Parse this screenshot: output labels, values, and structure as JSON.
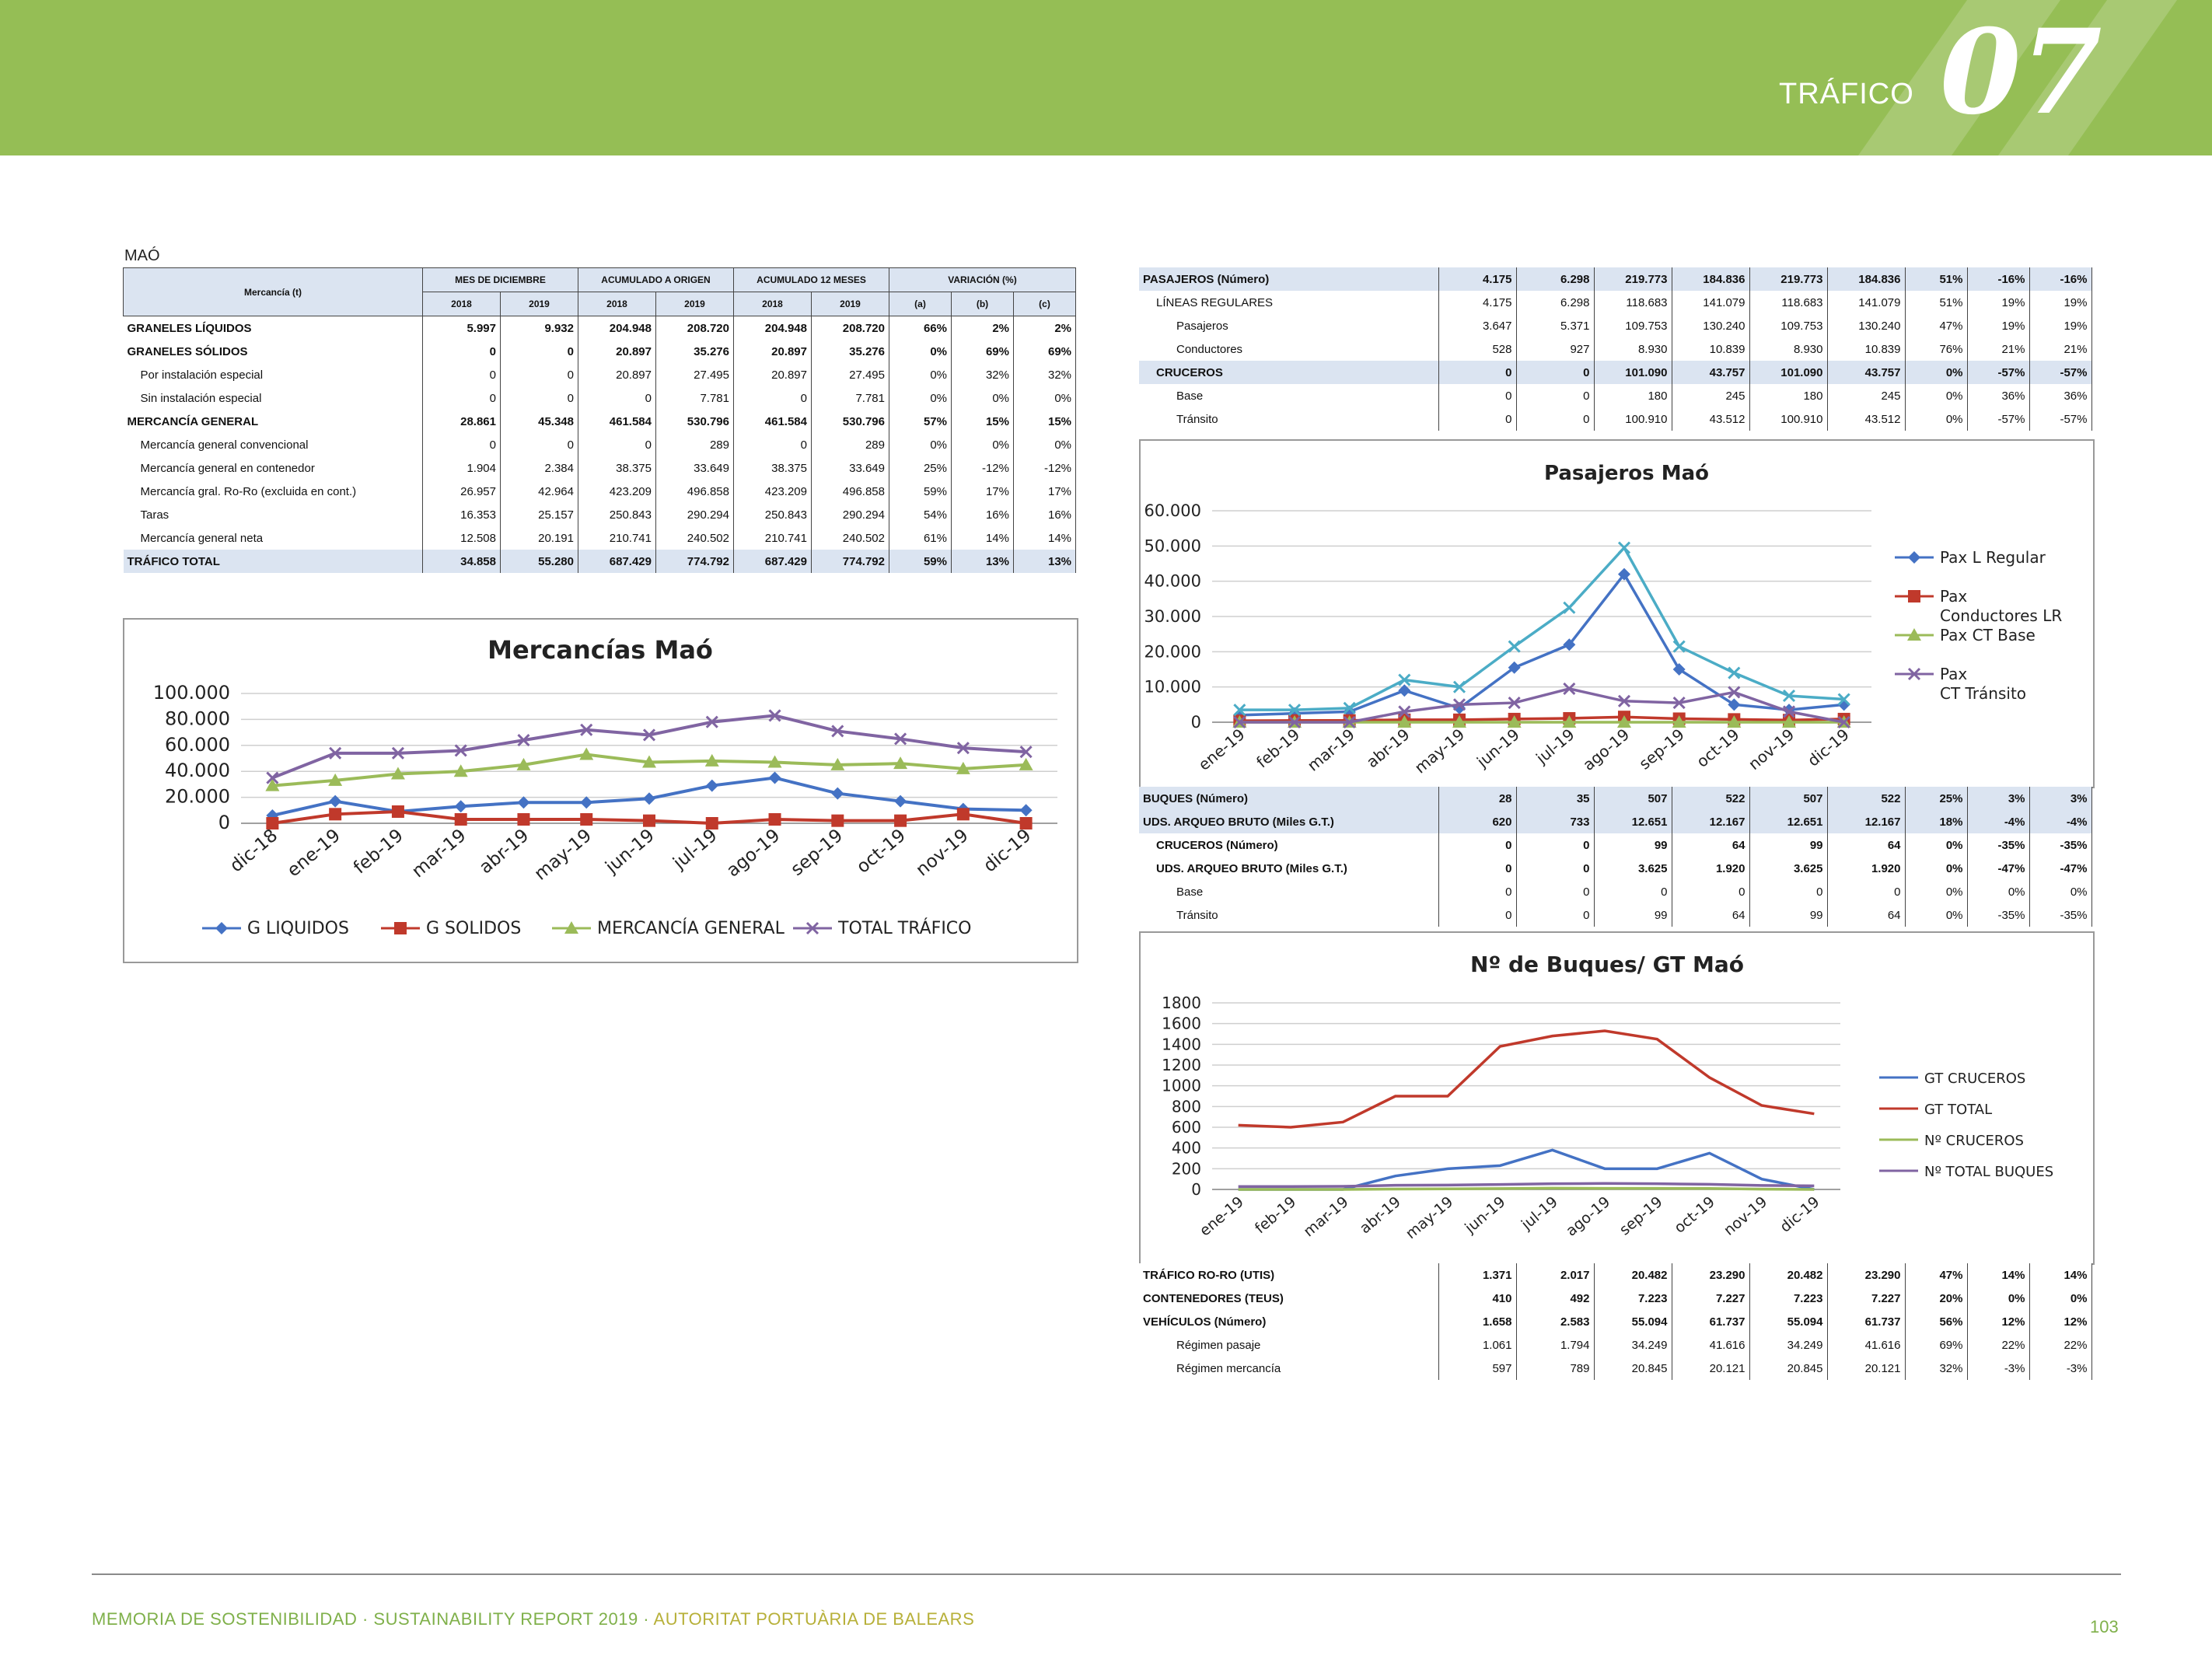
{
  "header": {
    "title": "TRÁFICO",
    "chapter": "07",
    "color": "#95be55"
  },
  "footer": {
    "text_main": "MEMORIA DE SOSTENIBILIDAD · SUSTAINABILITY REPORT 2019 · ",
    "text_accent": "AUTORITAT PORTUÀRIA DE BALEARS",
    "page": "103"
  },
  "left_table": {
    "caption": "MAÓ",
    "col_header": "Mercancía (t)",
    "groups": [
      "MES DE DICIEMBRE",
      "ACUMULADO A ORIGEN",
      "ACUMULADO 12 MESES",
      "VARIACIÓN (%)"
    ],
    "subheaders": [
      "2018",
      "2019",
      "2018",
      "2019",
      "2018",
      "2019",
      "(a)",
      "(b)",
      "(c)"
    ],
    "rows": [
      {
        "label": "GRANELES LÍQUIDOS",
        "level": 0,
        "bold": true,
        "values": [
          "5.997",
          "9.932",
          "204.948",
          "208.720",
          "204.948",
          "208.720",
          "66%",
          "2%",
          "2%"
        ]
      },
      {
        "label": "GRANELES SÓLIDOS",
        "level": 0,
        "bold": true,
        "values": [
          "0",
          "0",
          "20.897",
          "35.276",
          "20.897",
          "35.276",
          "0%",
          "69%",
          "69%"
        ]
      },
      {
        "label": "Por instalación especial",
        "level": 1,
        "bold": false,
        "values": [
          "0",
          "0",
          "20.897",
          "27.495",
          "20.897",
          "27.495",
          "0%",
          "32%",
          "32%"
        ]
      },
      {
        "label": "Sin instalación especial",
        "level": 1,
        "bold": false,
        "values": [
          "0",
          "0",
          "0",
          "7.781",
          "0",
          "7.781",
          "0%",
          "0%",
          "0%"
        ]
      },
      {
        "label": "MERCANCÍA GENERAL",
        "level": 0,
        "bold": true,
        "values": [
          "28.861",
          "45.348",
          "461.584",
          "530.796",
          "461.584",
          "530.796",
          "57%",
          "15%",
          "15%"
        ]
      },
      {
        "label": "Mercancía general convencional",
        "level": 1,
        "bold": false,
        "values": [
          "0",
          "0",
          "0",
          "289",
          "0",
          "289",
          "0%",
          "0%",
          "0%"
        ]
      },
      {
        "label": "Mercancía general en contenedor",
        "level": 1,
        "bold": false,
        "values": [
          "1.904",
          "2.384",
          "38.375",
          "33.649",
          "38.375",
          "33.649",
          "25%",
          "-12%",
          "-12%"
        ]
      },
      {
        "label": "Mercancía gral. Ro-Ro (excluida en cont.)",
        "level": 1,
        "bold": false,
        "values": [
          "26.957",
          "42.964",
          "423.209",
          "496.858",
          "423.209",
          "496.858",
          "59%",
          "17%",
          "17%"
        ]
      },
      {
        "label": "Taras",
        "level": 1,
        "bold": false,
        "values": [
          "16.353",
          "25.157",
          "250.843",
          "290.294",
          "250.843",
          "290.294",
          "54%",
          "16%",
          "16%"
        ]
      },
      {
        "label": "Mercancía general neta",
        "level": 1,
        "bold": false,
        "values": [
          "12.508",
          "20.191",
          "210.741",
          "240.502",
          "210.741",
          "240.502",
          "61%",
          "14%",
          "14%"
        ]
      },
      {
        "label": "TRÁFICO TOTAL",
        "level": 0,
        "bold": true,
        "highlight": true,
        "values": [
          "34.858",
          "55.280",
          "687.429",
          "774.792",
          "687.429",
          "774.792",
          "59%",
          "13%",
          "13%"
        ]
      }
    ]
  },
  "right_table_pax": {
    "rows": [
      {
        "label": "PASAJEROS (Número)",
        "level": 0,
        "bold": true,
        "highlight": true,
        "values": [
          "4.175",
          "6.298",
          "219.773",
          "184.836",
          "219.773",
          "184.836",
          "51%",
          "-16%",
          "-16%"
        ]
      },
      {
        "label": "LÍNEAS REGULARES",
        "level": 1,
        "bold": false,
        "values": [
          "4.175",
          "6.298",
          "118.683",
          "141.079",
          "118.683",
          "141.079",
          "51%",
          "19%",
          "19%"
        ]
      },
      {
        "label": "Pasajeros",
        "level": 2,
        "bold": false,
        "values": [
          "3.647",
          "5.371",
          "109.753",
          "130.240",
          "109.753",
          "130.240",
          "47%",
          "19%",
          "19%"
        ]
      },
      {
        "label": "Conductores",
        "level": 2,
        "bold": false,
        "values": [
          "528",
          "927",
          "8.930",
          "10.839",
          "8.930",
          "10.839",
          "76%",
          "21%",
          "21%"
        ]
      },
      {
        "label": "CRUCEROS",
        "level": 1,
        "bold": false,
        "highlight": true,
        "values": [
          "0",
          "0",
          "101.090",
          "43.757",
          "101.090",
          "43.757",
          "0%",
          "-57%",
          "-57%"
        ]
      },
      {
        "label": "Base",
        "level": 2,
        "bold": false,
        "values": [
          "0",
          "0",
          "180",
          "245",
          "180",
          "245",
          "0%",
          "36%",
          "36%"
        ]
      },
      {
        "label": "Tránsito",
        "level": 2,
        "bold": false,
        "values": [
          "0",
          "0",
          "100.910",
          "43.512",
          "100.910",
          "43.512",
          "0%",
          "-57%",
          "-57%"
        ]
      }
    ]
  },
  "right_table_buques": {
    "rows": [
      {
        "label": "BUQUES (Número)",
        "level": 0,
        "bold": true,
        "highlight": true,
        "values": [
          "28",
          "35",
          "507",
          "522",
          "507",
          "522",
          "25%",
          "3%",
          "3%"
        ]
      },
      {
        "label": "UDS. ARQUEO BRUTO  (Miles G.T.)",
        "level": 0,
        "bold": true,
        "highlight": true,
        "values": [
          "620",
          "733",
          "12.651",
          "12.167",
          "12.651",
          "12.167",
          "18%",
          "-4%",
          "-4%"
        ]
      },
      {
        "label": "CRUCEROS (Número)",
        "level": 1,
        "bold": true,
        "values": [
          "0",
          "0",
          "99",
          "64",
          "99",
          "64",
          "0%",
          "-35%",
          "-35%"
        ]
      },
      {
        "label": "UDS. ARQUEO BRUTO  (Miles G.T.)",
        "level": 1,
        "bold": true,
        "values": [
          "0",
          "0",
          "3.625",
          "1.920",
          "3.625",
          "1.920",
          "0%",
          "-47%",
          "-47%"
        ]
      },
      {
        "label": "Base",
        "level": 2,
        "bold": false,
        "values": [
          "0",
          "0",
          "0",
          "0",
          "0",
          "0",
          "0%",
          "0%",
          "0%"
        ]
      },
      {
        "label": "Tránsito",
        "level": 2,
        "bold": false,
        "values": [
          "0",
          "0",
          "99",
          "64",
          "99",
          "64",
          "0%",
          "-35%",
          "-35%"
        ]
      }
    ]
  },
  "right_table_roro": {
    "rows": [
      {
        "label": "TRÁFICO RO-RO (UTIS)",
        "level": 0,
        "bold": true,
        "values": [
          "1.371",
          "2.017",
          "20.482",
          "23.290",
          "20.482",
          "23.290",
          "47%",
          "14%",
          "14%"
        ]
      },
      {
        "label": "CONTENEDORES (TEUS)",
        "level": 0,
        "bold": true,
        "values": [
          "410",
          "492",
          "7.223",
          "7.227",
          "7.223",
          "7.227",
          "20%",
          "0%",
          "0%"
        ]
      },
      {
        "label": "VEHÍCULOS (Número)",
        "level": 0,
        "bold": true,
        "values": [
          "1.658",
          "2.583",
          "55.094",
          "61.737",
          "55.094",
          "61.737",
          "56%",
          "12%",
          "12%"
        ]
      },
      {
        "label": "Régimen pasaje",
        "level": 2,
        "bold": false,
        "values": [
          "1.061",
          "1.794",
          "34.249",
          "41.616",
          "34.249",
          "41.616",
          "69%",
          "22%",
          "22%"
        ]
      },
      {
        "label": "Régimen  mercancía",
        "level": 2,
        "bold": false,
        "values": [
          "597",
          "789",
          "20.845",
          "20.121",
          "20.845",
          "20.121",
          "32%",
          "-3%",
          "-3%"
        ]
      }
    ]
  },
  "chart_data": [
    {
      "type": "line",
      "title": "Mercancías Maó",
      "categories": [
        "dic-18",
        "ene-19",
        "feb-19",
        "mar-19",
        "abr-19",
        "may-19",
        "jun-19",
        "jul-19",
        "ago-19",
        "sep-19",
        "oct-19",
        "nov-19",
        "dic-19"
      ],
      "ylim": [
        0,
        100000
      ],
      "yticks": [
        "0",
        "20.000",
        "40.000",
        "60.000",
        "80.000",
        "100.000"
      ],
      "legend": "bottom",
      "series": [
        {
          "name": "G LIQUIDOS",
          "color": "#4472c4",
          "marker": "diamond",
          "values": [
            6000,
            17000,
            9000,
            13000,
            16000,
            16000,
            19000,
            29000,
            35000,
            23000,
            17000,
            11000,
            10000
          ]
        },
        {
          "name": "G SOLIDOS",
          "color": "#c0392b",
          "marker": "square",
          "values": [
            0,
            7000,
            9000,
            3000,
            3000,
            3000,
            2000,
            0,
            3000,
            2000,
            2000,
            7000,
            0
          ]
        },
        {
          "name": "MERCANCÍA GENERAL",
          "color": "#9bbb59",
          "marker": "triangle",
          "values": [
            29000,
            33000,
            38000,
            40000,
            45000,
            53000,
            47000,
            48000,
            47000,
            45000,
            46000,
            42000,
            45000
          ]
        },
        {
          "name": "TOTAL TRÁFICO",
          "color": "#8064a2",
          "marker": "x",
          "values": [
            35000,
            54000,
            54000,
            56000,
            64000,
            72000,
            68000,
            78000,
            83000,
            71000,
            65000,
            58000,
            55000
          ]
        }
      ]
    },
    {
      "type": "line",
      "title": "Pasajeros Maó",
      "categories": [
        "ene-19",
        "feb-19",
        "mar-19",
        "abr-19",
        "may-19",
        "jun-19",
        "jul-19",
        "ago-19",
        "sep-19",
        "oct-19",
        "nov-19",
        "dic-19"
      ],
      "ylim": [
        0,
        60000
      ],
      "yticks": [
        "0",
        "10.000",
        "20.000",
        "30.000",
        "40.000",
        "50.000",
        "60.000"
      ],
      "legend": "right",
      "series": [
        {
          "name": "Pax L Regular",
          "color": "#4472c4",
          "marker": "diamond",
          "values": [
            2000,
            2500,
            3000,
            9000,
            4000,
            15500,
            22000,
            42000,
            15000,
            5000,
            3500,
            5000
          ]
        },
        {
          "name": "Pax Conductores LR",
          "color": "#c0392b",
          "marker": "square",
          "values": [
            400,
            500,
            500,
            700,
            700,
            900,
            1100,
            1500,
            1000,
            800,
            600,
            900
          ]
        },
        {
          "name": "Pax CT Base",
          "color": "#9bbb59",
          "marker": "triangle",
          "values": [
            0,
            0,
            0,
            0,
            0,
            0,
            0,
            0,
            0,
            0,
            0,
            0
          ]
        },
        {
          "name": "Pax CT Tránsito",
          "color": "#8064a2",
          "marker": "x",
          "values": [
            0,
            0,
            0,
            3000,
            5000,
            5500,
            9500,
            6000,
            5500,
            8500,
            3000,
            0
          ]
        },
        {
          "name": "",
          "color": "#4bacc6",
          "marker": "x",
          "values": [
            3500,
            3500,
            4000,
            12000,
            10000,
            21500,
            32500,
            49500,
            21500,
            14000,
            7500,
            6500
          ]
        }
      ]
    },
    {
      "type": "line",
      "title": "Nº de Buques/ GT Maó",
      "categories": [
        "ene-19",
        "feb-19",
        "mar-19",
        "abr-19",
        "may-19",
        "jun-19",
        "jul-19",
        "ago-19",
        "sep-19",
        "oct-19",
        "nov-19",
        "dic-19"
      ],
      "ylim": [
        0,
        1800
      ],
      "yticks": [
        "0",
        "200",
        "400",
        "600",
        "800",
        "1000",
        "1200",
        "1400",
        "1600",
        "1800"
      ],
      "legend": "right",
      "series": [
        {
          "name": "GT CRUCEROS",
          "color": "#4472c4",
          "values": [
            0,
            0,
            0,
            130,
            200,
            230,
            380,
            200,
            200,
            350,
            100,
            0
          ]
        },
        {
          "name": "GT TOTAL",
          "color": "#c0392b",
          "values": [
            620,
            600,
            650,
            900,
            900,
            1380,
            1480,
            1530,
            1450,
            1080,
            810,
            730
          ]
        },
        {
          "name": "Nº CRUCEROS",
          "color": "#9bbb59",
          "values": [
            0,
            0,
            0,
            4,
            6,
            8,
            12,
            10,
            10,
            9,
            3,
            0
          ]
        },
        {
          "name": "Nº TOTAL BUQUES",
          "color": "#8064a2",
          "values": [
            28,
            28,
            30,
            40,
            42,
            48,
            55,
            58,
            55,
            50,
            38,
            35
          ]
        }
      ]
    }
  ]
}
